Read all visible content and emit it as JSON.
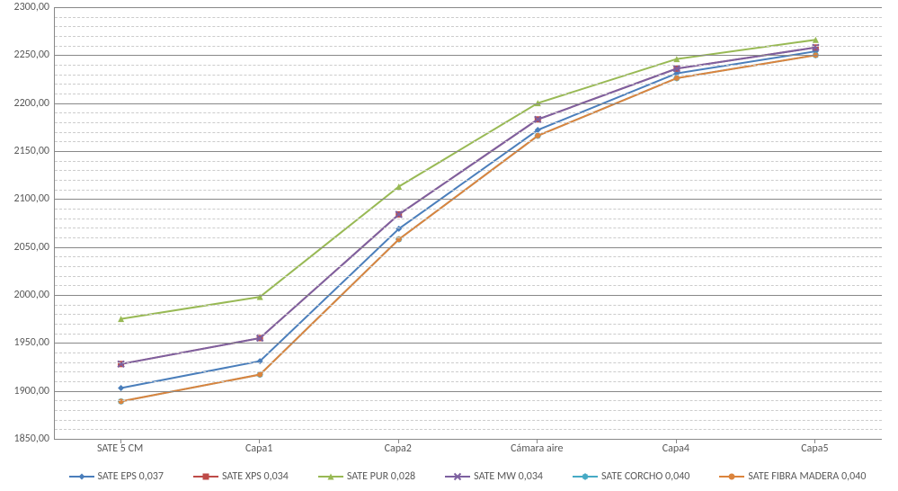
{
  "chart": {
    "type": "line",
    "background_color": "#ffffff",
    "grid_major_color": "#888888",
    "grid_minor_color": "#cccccc",
    "axis_text_color": "#595959",
    "font_family": "Calibri",
    "axis_fontsize": 12,
    "legend_fontsize": 12,
    "ylim": [
      1850.0,
      2300.0
    ],
    "y_major_step": 50.0,
    "y_minor_step": 10.0,
    "y_tick_labels": [
      "1850,00",
      "1900,00",
      "1950,00",
      "2000,00",
      "2050,00",
      "2100,00",
      "2150,00",
      "2200,00",
      "2250,00",
      "2300,00"
    ],
    "categories": [
      "SATE 5 CM",
      "Capa1",
      "Capa2",
      "Cámara aire",
      "Capa4",
      "Capa5"
    ],
    "line_width": 2,
    "marker_size": 6,
    "series": [
      {
        "name": "SATE EPS 0,037",
        "color": "#4a7ebb",
        "marker": "diamond",
        "values": [
          1903,
          1931,
          2069,
          2172,
          2231,
          2254
        ]
      },
      {
        "name": "SATE XPS 0,034",
        "color": "#be4b48",
        "marker": "square",
        "values": [
          1928,
          1955,
          2084,
          2183,
          2236,
          2258
        ]
      },
      {
        "name": "SATE PUR 0,028",
        "color": "#98b954",
        "marker": "triangle",
        "values": [
          1975,
          1998,
          2113,
          2200,
          2246,
          2266
        ]
      },
      {
        "name": "SATE MW 0,034",
        "color": "#7d60a0",
        "marker": "cross",
        "values": [
          1928,
          1955,
          2084,
          2183,
          2236,
          2258
        ]
      },
      {
        "name": "SATE CORCHO 0,040",
        "color": "#46aac5",
        "marker": "star",
        "values": [
          1889,
          1917,
          2058,
          2166,
          2226,
          2250
        ]
      },
      {
        "name": "SATE FIBRA MADERA 0,040",
        "color": "#db843d",
        "marker": "circle",
        "values": [
          1889,
          1917,
          2058,
          2166,
          2226,
          2250
        ]
      }
    ]
  }
}
